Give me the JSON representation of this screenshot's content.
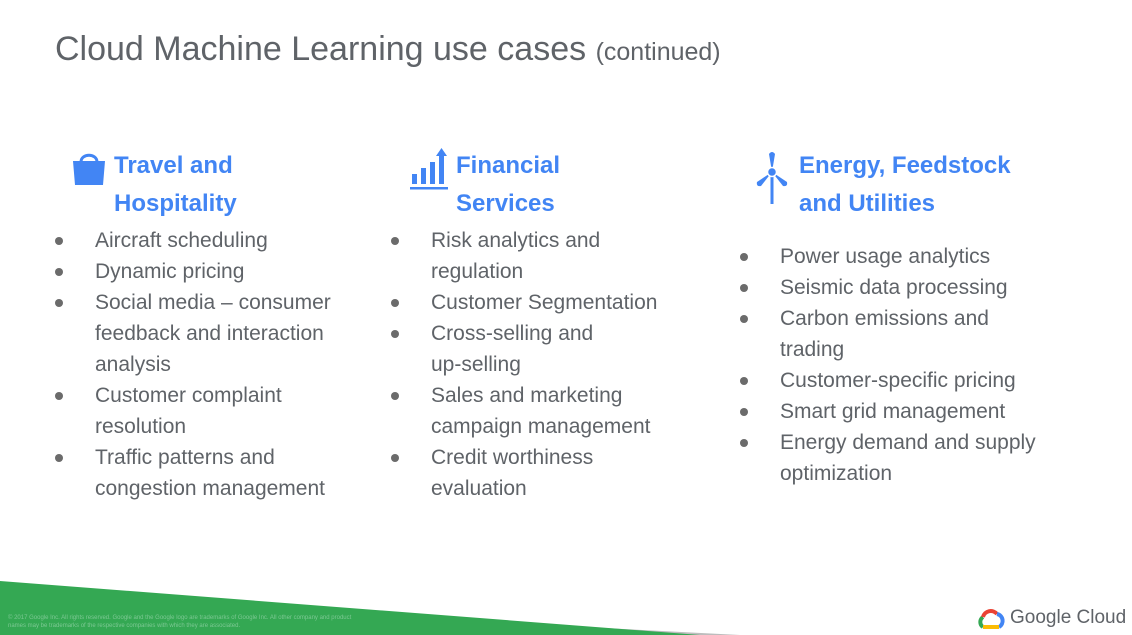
{
  "slide": {
    "title": "Cloud Machine Learning use cases",
    "title_suffix": "(continued)"
  },
  "columns": [
    {
      "heading_line1": "Travel and",
      "heading_line2": "Hospitality",
      "icon": "shopping-bag-icon",
      "items": [
        {
          "line1": "Aircraft scheduling",
          "line2": "",
          "line3": ""
        },
        {
          "line1": "Dynamic pricing",
          "line2": "",
          "line3": ""
        },
        {
          "line1": "Social media – consumer",
          "line2": "feedback and interaction",
          "line3": "analysis"
        },
        {
          "line1": "Customer complaint",
          "line2": "resolution",
          "line3": ""
        },
        {
          "line1": "Traffic patterns and",
          "line2": "congestion management",
          "line3": ""
        }
      ]
    },
    {
      "heading_line1": "Financial",
      "heading_line2": "Services",
      "icon": "bar-chart-up-icon",
      "items": [
        {
          "line1": "Risk analytics and",
          "line2": "regulation"
        },
        {
          "line1": "Customer Segmentation",
          "line2": ""
        },
        {
          "line1": "Cross-selling and",
          "line2": "up-selling"
        },
        {
          "line1": "Sales and marketing",
          "line2": "campaign management"
        },
        {
          "line1": "Credit worthiness",
          "line2": "evaluation"
        }
      ]
    },
    {
      "heading_line1": "Energy, Feedstock",
      "heading_line2": "and Utilities",
      "icon": "wind-turbine-icon",
      "items": [
        {
          "line1": "Power usage analytics",
          "line2": ""
        },
        {
          "line1": "Seismic data processing",
          "line2": ""
        },
        {
          "line1": "Carbon emissions and",
          "line2": "trading"
        },
        {
          "line1": "Customer-specific pricing",
          "line2": ""
        },
        {
          "line1": "Smart grid management",
          "line2": ""
        },
        {
          "line1": "Energy demand and supply",
          "line2": "optimization"
        }
      ]
    }
  ],
  "footer": {
    "copyright": "© 2017 Google Inc. All rights reserved. Google and the Google logo are trademarks of Google Inc. All other company and product names may be trademarks of the respective companies with which they are associated.",
    "logo_text": "Google Cloud",
    "logo_icon": "google-cloud-logo-icon"
  },
  "colors": {
    "heading_blue": "#4285f4",
    "text_gray": "#5f6368",
    "footer_green": "#34a853",
    "footer_gray": "#bdbdbd"
  }
}
